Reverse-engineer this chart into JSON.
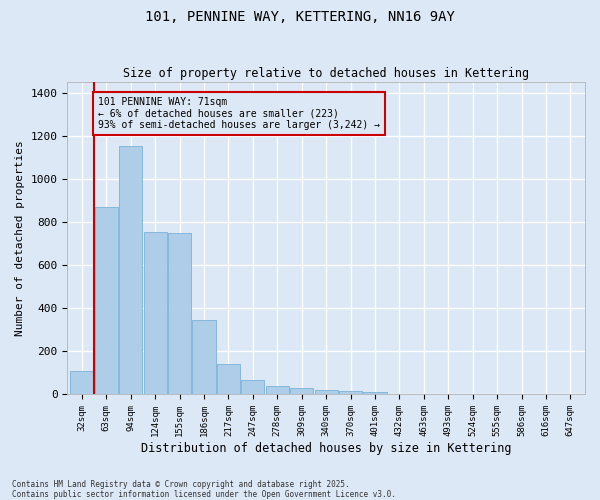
{
  "title_line1": "101, PENNINE WAY, KETTERING, NN16 9AY",
  "title_line2": "Size of property relative to detached houses in Kettering",
  "xlabel": "Distribution of detached houses by size in Kettering",
  "ylabel": "Number of detached properties",
  "categories": [
    "32sqm",
    "63sqm",
    "94sqm",
    "124sqm",
    "155sqm",
    "186sqm",
    "217sqm",
    "247sqm",
    "278sqm",
    "309sqm",
    "340sqm",
    "370sqm",
    "401sqm",
    "432sqm",
    "463sqm",
    "493sqm",
    "524sqm",
    "555sqm",
    "586sqm",
    "616sqm",
    "647sqm"
  ],
  "values": [
    107,
    870,
    1155,
    752,
    750,
    345,
    143,
    68,
    38,
    32,
    20,
    17,
    10,
    2,
    0,
    0,
    0,
    0,
    0,
    0,
    0
  ],
  "bar_color": "#aecde8",
  "bar_edgecolor": "#6aaad4",
  "property_line_color": "#cc0000",
  "annotation_text": "101 PENNINE WAY: 71sqm\n← 6% of detached houses are smaller (223)\n93% of semi-detached houses are larger (3,242) →",
  "annotation_box_color": "#cc0000",
  "ylim": [
    0,
    1450
  ],
  "yticks": [
    0,
    200,
    400,
    600,
    800,
    1000,
    1200,
    1400
  ],
  "background_color": "#dce8f5",
  "grid_color": "#ffffff",
  "footnote": "Contains HM Land Registry data © Crown copyright and database right 2025.\nContains public sector information licensed under the Open Government Licence v3.0."
}
